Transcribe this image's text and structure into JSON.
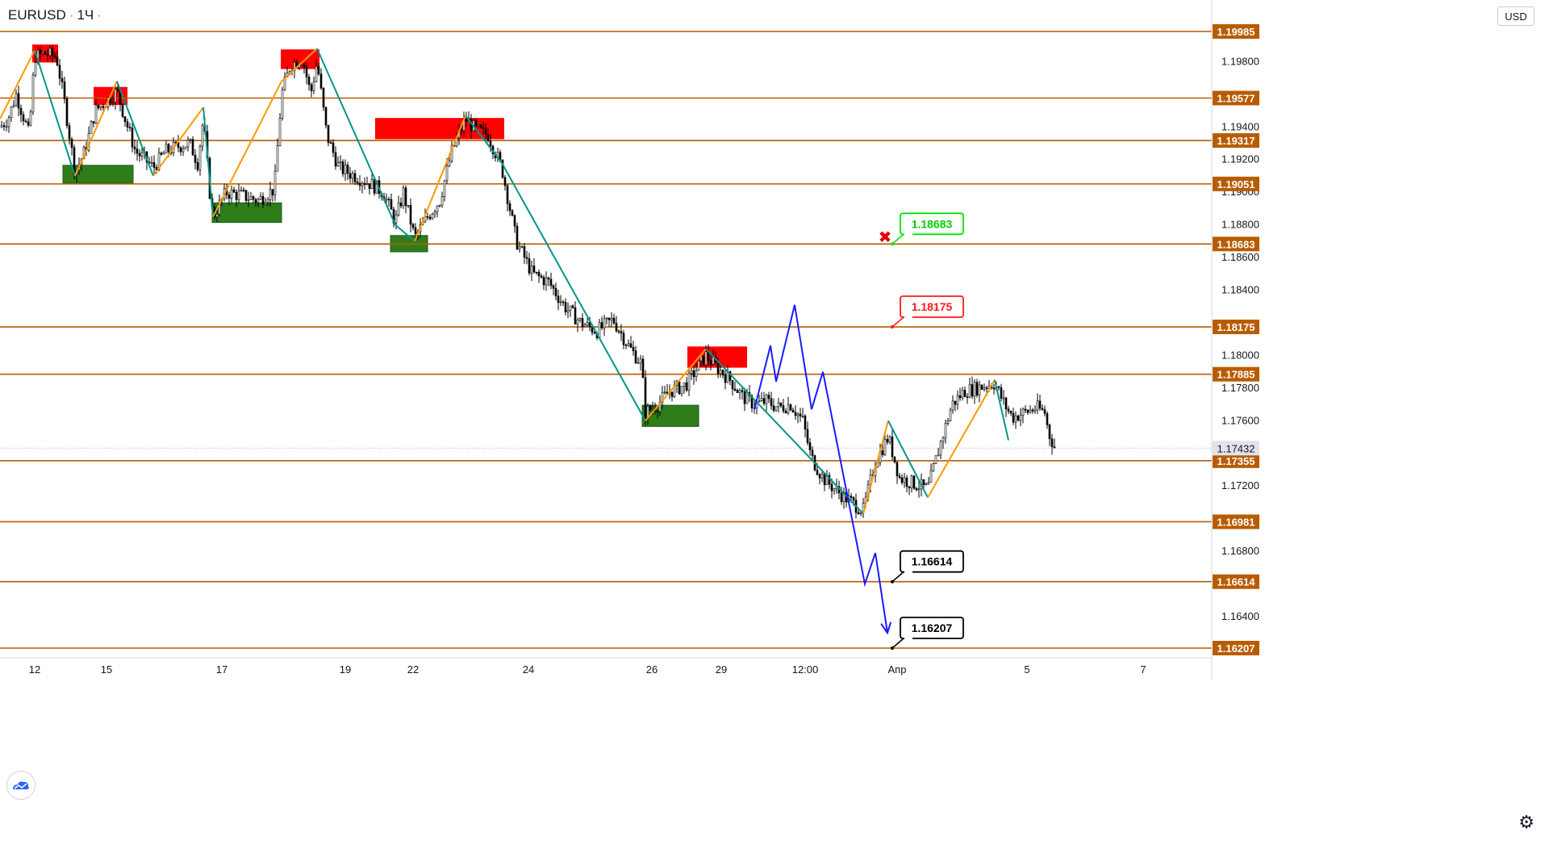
{
  "header": {
    "symbol": "EURUSD",
    "separator": "·",
    "interval": "1Ч",
    "interval_suffix": "·"
  },
  "currency_badge": "USD",
  "settings_icon": "gear-icon",
  "logo_icon": "tradingview-logo-icon",
  "chart_data": {
    "type": "candlestick",
    "symbol": "EURUSD",
    "currency": "USD",
    "y_range": [
      1.1615,
      1.2017
    ],
    "y_ticks": [
      1.198,
      1.194,
      1.192,
      1.19,
      1.188,
      1.186,
      1.184,
      1.18,
      1.178,
      1.176,
      1.172,
      1.168,
      1.164
    ],
    "x_ticks": [
      "12",
      "15",
      "17",
      "19",
      "22",
      "24",
      "26",
      "29",
      "12:00",
      "Апр",
      "5",
      "7"
    ],
    "current_price": 1.17432,
    "levels": [
      {
        "price": 1.19985,
        "label": "1.19985"
      },
      {
        "price": 1.19577,
        "label": "1.19577"
      },
      {
        "price": 1.19317,
        "label": "1.19317"
      },
      {
        "price": 1.19051,
        "label": "1.19051"
      },
      {
        "price": 1.18683,
        "label": "1.18683"
      },
      {
        "price": 1.18175,
        "label": "1.18175"
      },
      {
        "price": 1.17885,
        "label": "1.17885"
      },
      {
        "price": 1.17355,
        "label": "1.17355"
      },
      {
        "price": 1.16981,
        "label": "1.16981"
      },
      {
        "price": 1.16614,
        "label": "1.16614"
      },
      {
        "price": 1.16207,
        "label": "1.16207"
      }
    ],
    "callouts": [
      {
        "label": "1.18683",
        "price": 1.18683,
        "style": "green"
      },
      {
        "label": "1.18175",
        "price": 1.18175,
        "style": "red"
      },
      {
        "label": "1.16614",
        "price": 1.16614,
        "style": "black"
      },
      {
        "label": "1.16207",
        "price": 1.16207,
        "style": "black"
      }
    ],
    "cancel_marker": {
      "symbol": "✖",
      "price": 1.18683
    },
    "supply_zones": [
      {
        "p1": 1.19905,
        "p2": 1.19795
      },
      {
        "p1": 1.19645,
        "p2": 1.19535
      },
      {
        "p1": 1.19875,
        "p2": 1.19755
      },
      {
        "p1": 1.19455,
        "p2": 1.19325
      },
      {
        "p1": 1.18055,
        "p2": 1.17925
      }
    ],
    "demand_zones": [
      {
        "p1": 1.19165,
        "p2": 1.19055
      },
      {
        "p1": 1.18935,
        "p2": 1.18815
      },
      {
        "p1": 1.18735,
        "p2": 1.18635
      },
      {
        "p1": 1.17695,
        "p2": 1.17565
      }
    ],
    "zigzag_points": [
      {
        "t": 0,
        "p": 1.1945
      },
      {
        "t": 43,
        "p": 1.1987
      },
      {
        "t": 93,
        "p": 1.191
      },
      {
        "t": 145,
        "p": 1.1968
      },
      {
        "t": 190,
        "p": 1.191
      },
      {
        "t": 252,
        "p": 1.1952
      },
      {
        "t": 264,
        "p": 1.1885
      },
      {
        "t": 349,
        "p": 1.1968
      },
      {
        "t": 393,
        "p": 1.1988
      },
      {
        "t": 490,
        "p": 1.188
      },
      {
        "t": 514,
        "p": 1.187
      },
      {
        "t": 577,
        "p": 1.1947
      },
      {
        "t": 622,
        "p": 1.1918
      },
      {
        "t": 800,
        "p": 1.176
      },
      {
        "t": 875,
        "p": 1.1804
      },
      {
        "t": 1070,
        "p": 1.1703
      },
      {
        "t": 1101,
        "p": 1.176
      },
      {
        "t": 1150,
        "p": 1.1713
      },
      {
        "t": 1233,
        "p": 1.1785
      },
      {
        "t": 1250,
        "p": 1.1748
      }
    ],
    "projection_path": [
      {
        "t": 935,
        "p": 1.1767
      },
      {
        "t": 955,
        "p": 1.1806
      },
      {
        "t": 962,
        "p": 1.1784
      },
      {
        "t": 985,
        "p": 1.1831
      },
      {
        "t": 1006,
        "p": 1.1767
      },
      {
        "t": 1020,
        "p": 1.179
      },
      {
        "t": 1072,
        "p": 1.166
      },
      {
        "t": 1085,
        "p": 1.1679
      },
      {
        "t": 1100,
        "p": 1.163
      }
    ],
    "close_series": [
      {
        "t": 0,
        "p": 1.194
      },
      {
        "t": 10,
        "p": 1.1945
      },
      {
        "t": 20,
        "p": 1.196
      },
      {
        "t": 30,
        "p": 1.1945
      },
      {
        "t": 36,
        "p": 1.1935
      },
      {
        "t": 43,
        "p": 1.1983
      },
      {
        "t": 55,
        "p": 1.1985
      },
      {
        "t": 70,
        "p": 1.1983
      },
      {
        "t": 80,
        "p": 1.1955
      },
      {
        "t": 93,
        "p": 1.1912
      },
      {
        "t": 105,
        "p": 1.1925
      },
      {
        "t": 118,
        "p": 1.195
      },
      {
        "t": 130,
        "p": 1.1955
      },
      {
        "t": 145,
        "p": 1.1962
      },
      {
        "t": 155,
        "p": 1.1945
      },
      {
        "t": 168,
        "p": 1.1925
      },
      {
        "t": 180,
        "p": 1.192
      },
      {
        "t": 190,
        "p": 1.1915
      },
      {
        "t": 205,
        "p": 1.1925
      },
      {
        "t": 220,
        "p": 1.1928
      },
      {
        "t": 235,
        "p": 1.193
      },
      {
        "t": 245,
        "p": 1.1918
      },
      {
        "t": 252,
        "p": 1.1945
      },
      {
        "t": 260,
        "p": 1.19
      },
      {
        "t": 264,
        "p": 1.1885
      },
      {
        "t": 280,
        "p": 1.19
      },
      {
        "t": 300,
        "p": 1.1898
      },
      {
        "t": 320,
        "p": 1.1895
      },
      {
        "t": 340,
        "p": 1.1902
      },
      {
        "t": 349,
        "p": 1.196
      },
      {
        "t": 360,
        "p": 1.1978
      },
      {
        "t": 375,
        "p": 1.1982
      },
      {
        "t": 385,
        "p": 1.196
      },
      {
        "t": 393,
        "p": 1.198
      },
      {
        "t": 405,
        "p": 1.1935
      },
      {
        "t": 420,
        "p": 1.1915
      },
      {
        "t": 440,
        "p": 1.191
      },
      {
        "t": 460,
        "p": 1.1905
      },
      {
        "t": 475,
        "p": 1.19
      },
      {
        "t": 490,
        "p": 1.1882
      },
      {
        "t": 500,
        "p": 1.19
      },
      {
        "t": 514,
        "p": 1.1872
      },
      {
        "t": 530,
        "p": 1.1885
      },
      {
        "t": 545,
        "p": 1.1895
      },
      {
        "t": 560,
        "p": 1.1925
      },
      {
        "t": 577,
        "p": 1.1945
      },
      {
        "t": 590,
        "p": 1.1938
      },
      {
        "t": 605,
        "p": 1.1935
      },
      {
        "t": 622,
        "p": 1.1915
      },
      {
        "t": 640,
        "p": 1.187
      },
      {
        "t": 660,
        "p": 1.185
      },
      {
        "t": 680,
        "p": 1.1845
      },
      {
        "t": 700,
        "p": 1.183
      },
      {
        "t": 720,
        "p": 1.182
      },
      {
        "t": 740,
        "p": 1.1815
      },
      {
        "t": 760,
        "p": 1.1822
      },
      {
        "t": 780,
        "p": 1.1805
      },
      {
        "t": 795,
        "p": 1.1795
      },
      {
        "t": 800,
        "p": 1.1765
      },
      {
        "t": 815,
        "p": 1.177
      },
      {
        "t": 830,
        "p": 1.1778
      },
      {
        "t": 850,
        "p": 1.1782
      },
      {
        "t": 875,
        "p": 1.18
      },
      {
        "t": 890,
        "p": 1.1792
      },
      {
        "t": 905,
        "p": 1.1785
      },
      {
        "t": 920,
        "p": 1.1775
      },
      {
        "t": 935,
        "p": 1.177
      },
      {
        "t": 950,
        "p": 1.1772
      },
      {
        "t": 965,
        "p": 1.1768
      },
      {
        "t": 980,
        "p": 1.177
      },
      {
        "t": 995,
        "p": 1.176
      },
      {
        "t": 1005,
        "p": 1.1738
      },
      {
        "t": 1020,
        "p": 1.1725
      },
      {
        "t": 1035,
        "p": 1.1718
      },
      {
        "t": 1050,
        "p": 1.1712
      },
      {
        "t": 1070,
        "p": 1.1705
      },
      {
        "t": 1085,
        "p": 1.1735
      },
      {
        "t": 1101,
        "p": 1.175
      },
      {
        "t": 1115,
        "p": 1.1725
      },
      {
        "t": 1130,
        "p": 1.1722
      },
      {
        "t": 1150,
        "p": 1.1718
      },
      {
        "t": 1165,
        "p": 1.1745
      },
      {
        "t": 1180,
        "p": 1.177
      },
      {
        "t": 1195,
        "p": 1.1778
      },
      {
        "t": 1210,
        "p": 1.178
      },
      {
        "t": 1225,
        "p": 1.1782
      },
      {
        "t": 1233,
        "p": 1.1783
      },
      {
        "t": 1245,
        "p": 1.177
      },
      {
        "t": 1255,
        "p": 1.1762
      },
      {
        "t": 1270,
        "p": 1.1765
      },
      {
        "t": 1285,
        "p": 1.1768
      },
      {
        "t": 1295,
        "p": 1.1765
      },
      {
        "t": 1300,
        "p": 1.1752
      },
      {
        "t": 1308,
        "p": 1.1743
      }
    ]
  }
}
